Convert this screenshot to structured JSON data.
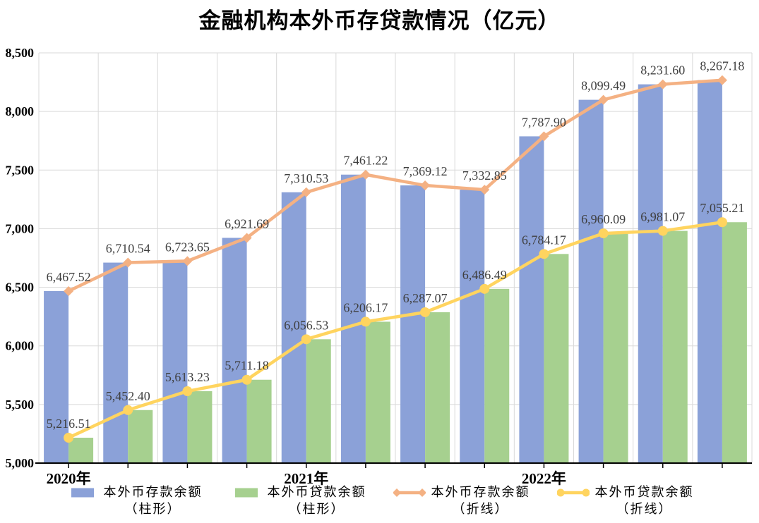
{
  "chart_data": {
    "type": "combo",
    "title": "金融机构本外币存贷款情况（亿元）",
    "y_axis": {
      "min": 5000,
      "max": 8500,
      "step": 500,
      "tick_labels": [
        "5,000",
        "5,500",
        "6,000",
        "6,500",
        "7,000",
        "7,500",
        "8,000",
        "8,500"
      ]
    },
    "x_axis": {
      "tick_labels": [
        "2020年",
        "",
        "",
        "",
        "2021年",
        "",
        "",
        "",
        "2022年",
        "",
        "",
        ""
      ]
    },
    "grid": true,
    "legend_position": "bottom",
    "colors": {
      "grid": "#D9D9D9",
      "axis": "#000000",
      "data_label": "#3F3F3F",
      "text": "#000000"
    },
    "series": [
      {
        "key": "deposit_bar",
        "name": "本外币存款余额",
        "subtitle": "（柱形）",
        "type": "bar",
        "color": "#8BA1D8",
        "data_labels": false,
        "values": [
          6467.52,
          6710.54,
          6723.65,
          6921.69,
          7310.53,
          7461.22,
          7369.12,
          7332.85,
          7787.9,
          8099.49,
          8231.6,
          8267.18
        ]
      },
      {
        "key": "loan_bar",
        "name": "本外币贷款余额",
        "subtitle": "（柱形）",
        "type": "bar",
        "color": "#A6D08F",
        "data_labels": false,
        "values": [
          5216.51,
          5452.4,
          5613.23,
          5711.18,
          6056.53,
          6206.17,
          6287.07,
          6486.49,
          6784.17,
          6960.09,
          6981.07,
          7055.21
        ]
      },
      {
        "key": "deposit_line",
        "name": "本外币存款余额",
        "subtitle": "（折线）",
        "type": "line",
        "marker": "diamond",
        "color": "#F4B183",
        "data_labels": true,
        "values": [
          6467.52,
          6710.54,
          6723.65,
          6921.69,
          7310.53,
          7461.22,
          7369.12,
          7332.85,
          7787.9,
          8099.49,
          8231.6,
          8267.18
        ]
      },
      {
        "key": "loan_line",
        "name": "本外币贷款余额",
        "subtitle": "（折线）",
        "type": "line",
        "marker": "circle",
        "color": "#FFD45F",
        "data_labels": true,
        "values": [
          5216.51,
          5452.4,
          5613.23,
          5711.18,
          6056.53,
          6206.17,
          6287.07,
          6486.49,
          6784.17,
          6960.09,
          6981.07,
          7055.21
        ]
      }
    ]
  }
}
